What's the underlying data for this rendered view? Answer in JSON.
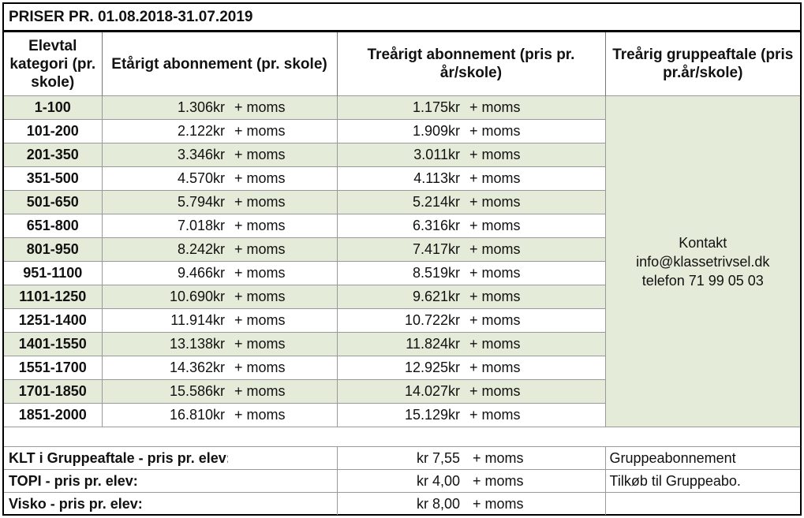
{
  "title": "PRISER PR. 01.08.2018-31.07.2019",
  "headers": {
    "col1": "Elevtal kategori (pr. skole)",
    "col2": "Etårigt abonnement (pr. skole)",
    "col3": "Treårigt abonnement (pris pr. år/skole)",
    "col4": "Treårig gruppeaftale (pris pr.år/skole)"
  },
  "moms": "+ moms",
  "rows": [
    {
      "cat": "1-100",
      "one": "1.306kr",
      "three": "1.175kr"
    },
    {
      "cat": "101-200",
      "one": "2.122kr",
      "three": "1.909kr"
    },
    {
      "cat": "201-350",
      "one": "3.346kr",
      "three": "3.011kr"
    },
    {
      "cat": "351-500",
      "one": "4.570kr",
      "three": "4.113kr"
    },
    {
      "cat": "501-650",
      "one": "5.794kr",
      "three": "5.214kr"
    },
    {
      "cat": "651-800",
      "one": "7.018kr",
      "three": "6.316kr"
    },
    {
      "cat": "801-950",
      "one": "8.242kr",
      "three": "7.417kr"
    },
    {
      "cat": "951-1100",
      "one": "9.466kr",
      "three": "8.519kr"
    },
    {
      "cat": "1101-1250",
      "one": "10.690kr",
      "three": "9.621kr"
    },
    {
      "cat": "1251-1400",
      "one": "11.914kr",
      "three": "10.722kr"
    },
    {
      "cat": "1401-1550",
      "one": "13.138kr",
      "three": "11.824kr"
    },
    {
      "cat": "1551-1700",
      "one": "14.362kr",
      "three": "12.925kr"
    },
    {
      "cat": "1701-1850",
      "one": "15.586kr",
      "three": "14.027kr"
    },
    {
      "cat": "1851-2000",
      "one": "16.810kr",
      "three": "15.129kr"
    }
  ],
  "contact": {
    "line1": "Kontakt",
    "line2": "info@klassetrivsel.dk",
    "line3": "telefon 71 99 05 03"
  },
  "footer": [
    {
      "label": "KLT i Gruppeaftale - pris pr. elev:",
      "value": "kr 7,55",
      "moms": "+ moms",
      "note": "Gruppeabonnement"
    },
    {
      "label": "TOPI - pris pr. elev:",
      "value": "kr 4,00",
      "moms": "+ moms",
      "note": "Tilkøb til Gruppeabo."
    },
    {
      "label": "Visko - pris pr. elev:",
      "value": "kr 8,00",
      "moms": "+ moms",
      "note": ""
    }
  ],
  "colors": {
    "band": "#e4ebd8",
    "border": "#000000"
  }
}
